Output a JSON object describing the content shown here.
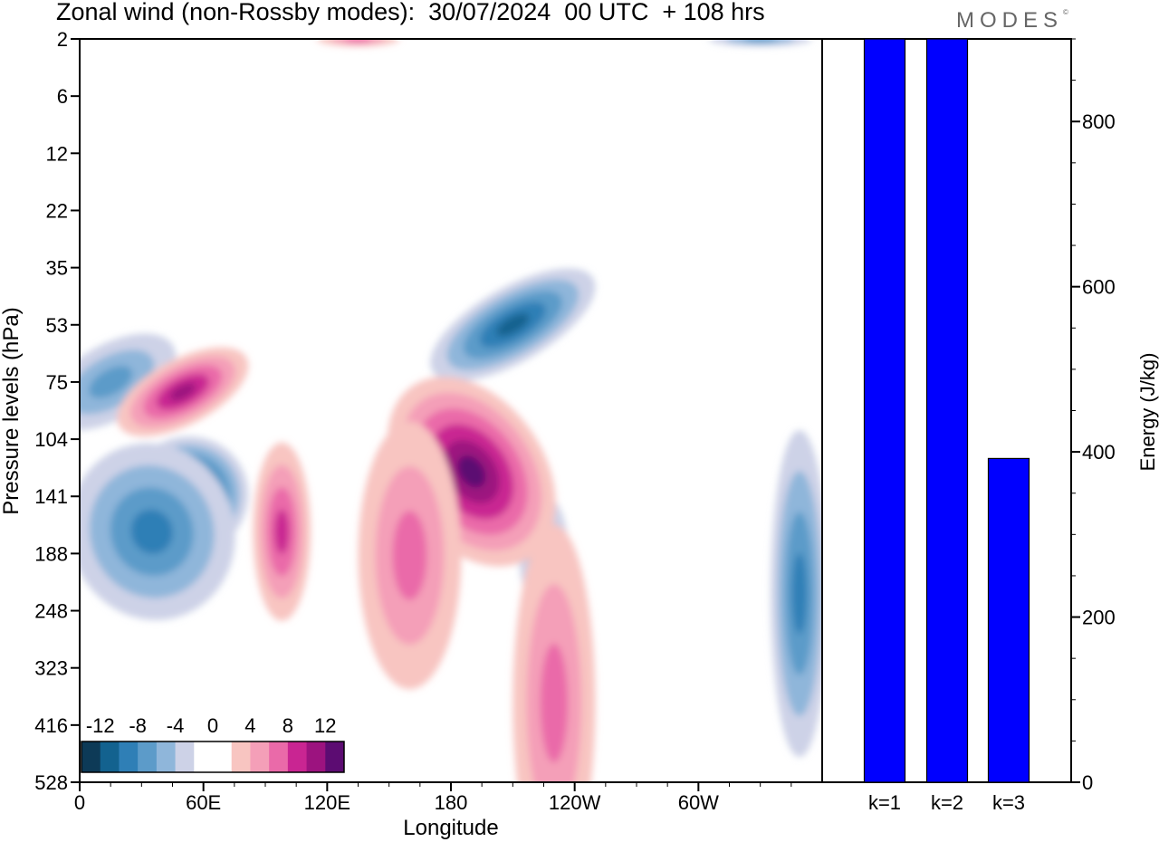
{
  "title": "Zonal wind (non-Rossby modes):  30/07/2024  00 UTC  + 108 hrs",
  "brand": "MODES",
  "brand_mark": "©",
  "chart_data": [
    {
      "type": "heatmap",
      "title": "Zonal wind (non-Rossby modes):  30/07/2024  00 UTC  + 108 hrs",
      "xlabel": "Longitude",
      "ylabel": "Pressure levels (hPa)",
      "x_ticks": [
        "0",
        "60E",
        "120E",
        "180",
        "120W",
        "60W"
      ],
      "x_tick_values": [
        0,
        60,
        120,
        180,
        240,
        300
      ],
      "xlim": [
        0,
        360
      ],
      "y_ticks": [
        "2",
        "6",
        "12",
        "22",
        "35",
        "53",
        "75",
        "104",
        "141",
        "188",
        "248",
        "323",
        "416",
        "528"
      ],
      "colorbar": {
        "tick_labels": [
          "-12",
          "-8",
          "-4",
          "0",
          "4",
          "8",
          "12"
        ],
        "levels": [
          -14,
          -12,
          -10,
          -8,
          -6,
          -4,
          -2,
          0,
          2,
          4,
          6,
          8,
          10,
          12,
          14
        ],
        "colors": [
          "#0d3a57",
          "#13628f",
          "#2f7fb6",
          "#5c9bc9",
          "#8fb6da",
          "#cdd2e7",
          "#ffffff",
          "#ffffff",
          "#f8c5c1",
          "#f49fb8",
          "#ea6aa9",
          "#c92592",
          "#9c137f",
          "#5c0c72"
        ]
      },
      "features": [
        {
          "sign": "negative",
          "cx": 52,
          "cy": 141,
          "rx": 30,
          "ry": 40,
          "peak": -14,
          "tilt": -28
        },
        {
          "sign": "negative",
          "cx": 35,
          "cy": 170,
          "rx": 40,
          "ry": 60,
          "peak": -8,
          "tilt": -20
        },
        {
          "sign": "negative",
          "cx": 15,
          "cy": 75,
          "rx": 35,
          "ry": 25,
          "peak": -6,
          "tilt": -30
        },
        {
          "sign": "negative",
          "cx": 210,
          "cy": 53,
          "rx": 45,
          "ry": 25,
          "peak": -10,
          "tilt": -30
        },
        {
          "sign": "negative",
          "cx": 225,
          "cy": 188,
          "rx": 12,
          "ry": 40,
          "peak": -6,
          "tilt": 0
        },
        {
          "sign": "negative",
          "cx": 349,
          "cy": 230,
          "rx": 14,
          "ry": 110,
          "peak": -8,
          "tilt": 0
        },
        {
          "sign": "positive",
          "cx": 50,
          "cy": 80,
          "rx": 35,
          "ry": 22,
          "peak": 10,
          "tilt": -28
        },
        {
          "sign": "positive",
          "cx": 190,
          "cy": 125,
          "rx": 35,
          "ry": 70,
          "peak": 12,
          "tilt": -35
        },
        {
          "sign": "positive",
          "cx": 98,
          "cy": 170,
          "rx": 14,
          "ry": 60,
          "peak": 8,
          "tilt": 0
        },
        {
          "sign": "positive",
          "cx": 160,
          "cy": 190,
          "rx": 25,
          "ry": 90,
          "peak": 6,
          "tilt": 0
        },
        {
          "sign": "positive",
          "cx": 230,
          "cy": 380,
          "rx": 20,
          "ry": 120,
          "peak": 6,
          "tilt": 0
        },
        {
          "sign": "positive",
          "cx": 135,
          "cy": 2,
          "rx": 20,
          "ry": 5,
          "peak": 6,
          "tilt": 0
        },
        {
          "sign": "negative",
          "cx": 330,
          "cy": 2,
          "rx": 25,
          "ry": 5,
          "peak": -6,
          "tilt": 0
        }
      ]
    },
    {
      "type": "bar",
      "categories": [
        "k=1",
        "k=2",
        "k=3"
      ],
      "values": [
        900,
        900,
        392
      ],
      "ylabel": "Energy (J/kg)",
      "ylim": [
        0,
        900
      ],
      "y_ticks": [
        0,
        200,
        400,
        600,
        800
      ],
      "bar_color": "#0000ff"
    }
  ]
}
